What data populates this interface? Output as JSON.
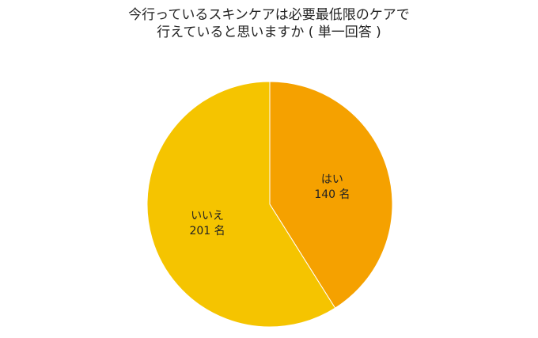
{
  "chart_data": {
    "type": "pie",
    "title_lines": [
      "今行っているスキンケアは必要最低限のケアで",
      "行えていると思いますか ( 単一回答 )"
    ],
    "slices": [
      {
        "label": "はい",
        "value": 140,
        "value_text": "140 名",
        "color": "#f5a100"
      },
      {
        "label": "いいえ",
        "value": 201,
        "value_text": "201 名",
        "color": "#f5c400"
      }
    ]
  }
}
